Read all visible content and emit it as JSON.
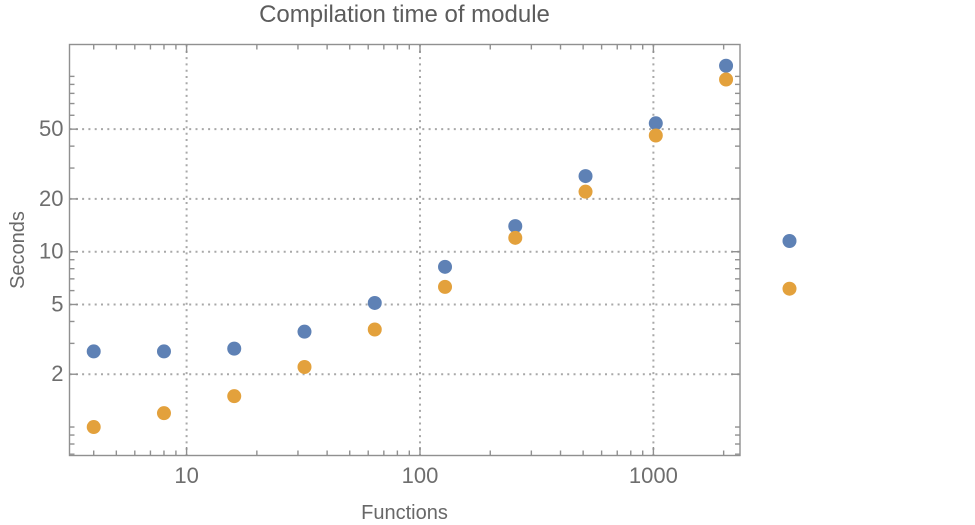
{
  "page": {
    "background": "#ffffff"
  },
  "chart_data": {
    "type": "scatter",
    "title": "Compilation time of module",
    "xlabel": "Functions",
    "ylabel": "Seconds",
    "x_scale": "log",
    "y_scale": "log",
    "grid": "dotted",
    "legend_position": "right-outside",
    "x_range": [
      3.15,
      2350
    ],
    "y_range": [
      0.688,
      152
    ],
    "x": [
      4,
      8,
      16,
      32,
      64,
      128,
      256,
      512,
      1024,
      2048
    ],
    "series": [
      {
        "name": "series-1-blue",
        "color": "#5E81B5",
        "values": [
          2.7,
          2.7,
          2.8,
          3.5,
          5.1,
          8.2,
          14,
          27,
          54,
          115
        ]
      },
      {
        "name": "series-2-orange",
        "color": "#E3A13C",
        "values": [
          1.0,
          1.2,
          1.5,
          2.2,
          3.6,
          6.3,
          12,
          22,
          46,
          96
        ]
      }
    ],
    "x_ticks": [
      {
        "v": 10,
        "label": "10"
      },
      {
        "v": 100,
        "label": "100"
      },
      {
        "v": 1000,
        "label": "1000"
      }
    ],
    "y_ticks": [
      {
        "v": 2,
        "label": "2"
      },
      {
        "v": 5,
        "label": "5"
      },
      {
        "v": 10,
        "label": "10"
      },
      {
        "v": 20,
        "label": "20"
      },
      {
        "v": 50,
        "label": "50"
      }
    ],
    "x_minor_ticks": [
      4,
      5,
      6,
      7,
      8,
      9,
      20,
      30,
      40,
      50,
      60,
      70,
      80,
      90,
      200,
      300,
      400,
      500,
      600,
      700,
      800,
      900,
      2000
    ],
    "y_minor_ticks": [
      0.7,
      0.8,
      0.9,
      1,
      3,
      4,
      6,
      7,
      8,
      9,
      30,
      40,
      60,
      70,
      80,
      90,
      100
    ],
    "legend_markers": [
      {
        "name": "legend-marker-series-1",
        "color": "#5E81B5"
      },
      {
        "name": "legend-marker-series-2",
        "color": "#E3A13C"
      }
    ],
    "colors": {
      "frame": "#909090",
      "grid": "#a8a8a8",
      "title_text": "#5c5c5c",
      "tick_text": "#6e6e6e",
      "label_text": "#686868",
      "series1": "#5E81B5",
      "series2": "#E3A13C"
    }
  }
}
